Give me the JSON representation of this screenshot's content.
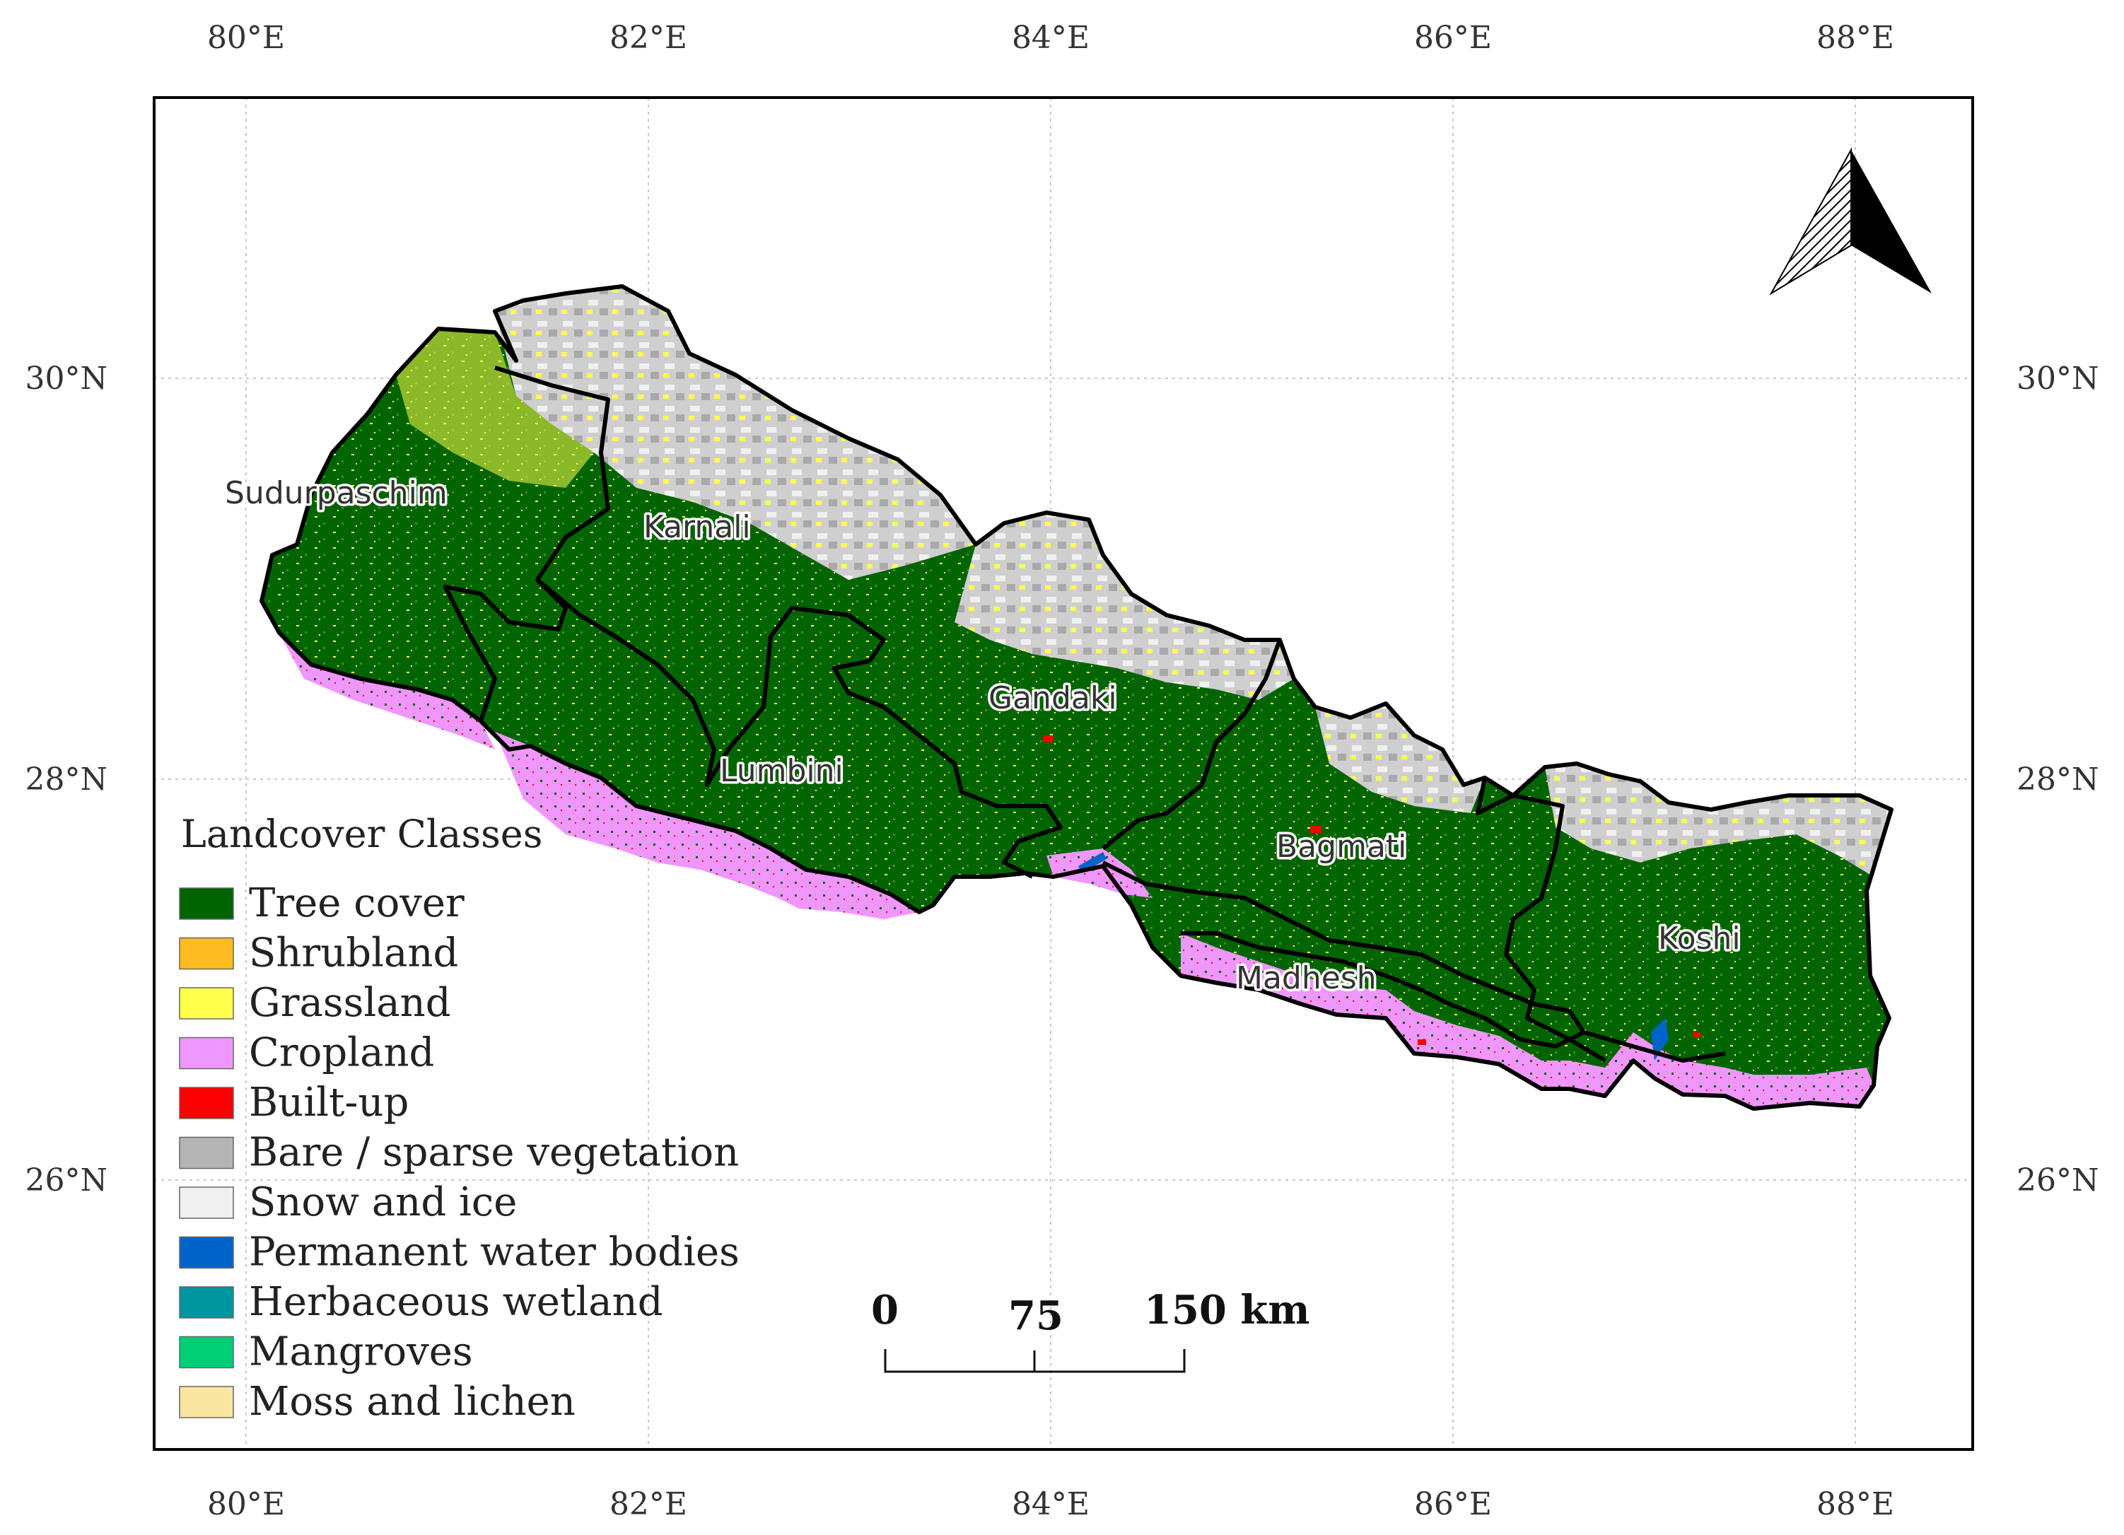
{
  "map": {
    "longitude_ticks": [
      "80°E",
      "82°E",
      "84°E",
      "86°E",
      "88°E"
    ],
    "latitude_ticks": [
      "30°N",
      "28°N",
      "26°N"
    ],
    "regions": [
      "Sudurpaschim",
      "Karnali",
      "Gandaki",
      "Lumbini",
      "Bagmati",
      "Koshi",
      "Madhesh"
    ],
    "legend": {
      "title": "Landcover Classes",
      "items": [
        {
          "label": "Tree cover",
          "color": "#006400"
        },
        {
          "label": "Shrubland",
          "color": "#ffbb22"
        },
        {
          "label": "Grassland",
          "color": "#ffff4c"
        },
        {
          "label": "Cropland",
          "color": "#f096ff"
        },
        {
          "label": "Built-up",
          "color": "#fa0000"
        },
        {
          "label": "Bare / sparse vegetation",
          "color": "#b4b4b4"
        },
        {
          "label": "Snow and ice",
          "color": "#f0f0f0"
        },
        {
          "label": "Permanent water bodies",
          "color": "#0064c8"
        },
        {
          "label": "Herbaceous wetland",
          "color": "#0096a0"
        },
        {
          "label": "Mangroves",
          "color": "#00cf75"
        },
        {
          "label": "Moss and lichen",
          "color": "#fae6a0"
        }
      ]
    },
    "scale_bar": {
      "labels": [
        "0",
        "75",
        "150 km"
      ]
    },
    "north_arrow": "north-arrow-icon"
  }
}
